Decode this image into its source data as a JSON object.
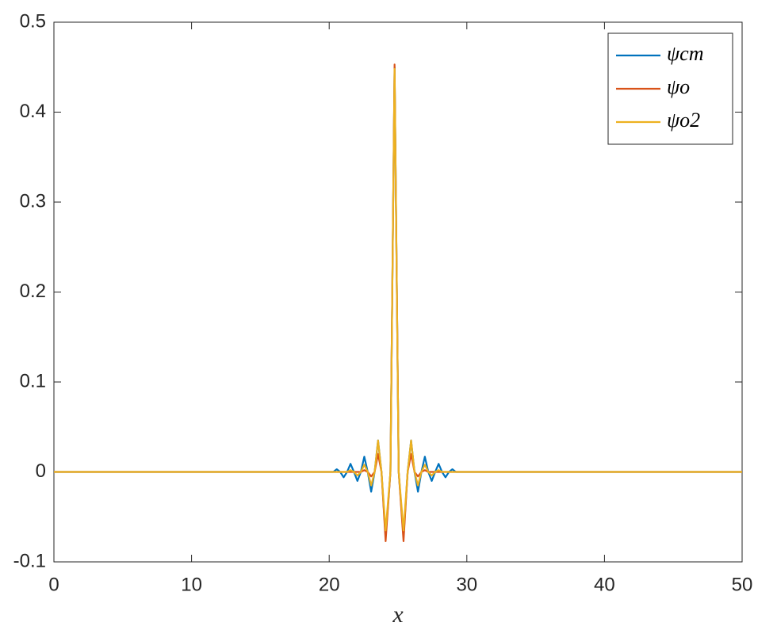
{
  "chart_data": {
    "type": "line",
    "xlabel": "x",
    "x": [
      0,
      20.3,
      20.55,
      20.8,
      21.05,
      21.3,
      21.55,
      21.8,
      22.05,
      22.3,
      22.55,
      22.8,
      23.05,
      23.3,
      23.55,
      23.8,
      24.1,
      24.45,
      24.75,
      25.05,
      25.4,
      25.7,
      25.95,
      26.2,
      26.45,
      26.7,
      26.95,
      27.2,
      27.45,
      27.7,
      27.95,
      28.2,
      28.45,
      28.7,
      28.95,
      29.2,
      50
    ],
    "series": [
      {
        "name": "ψcm",
        "color": "#0072bd",
        "values": [
          0,
          0,
          0.003,
          0,
          -0.006,
          0,
          0.009,
          0,
          -0.01,
          0,
          0.017,
          0,
          -0.022,
          0,
          0.035,
          0,
          -0.072,
          0,
          0.45,
          0,
          -0.072,
          0,
          0.035,
          0,
          -0.022,
          0,
          0.017,
          0,
          -0.01,
          0,
          0.009,
          0,
          -0.006,
          0,
          0.003,
          0,
          0
        ]
      },
      {
        "name": "ψo",
        "color": "#d95319",
        "values": [
          0,
          0,
          0,
          0,
          0,
          0,
          0,
          0,
          0,
          0,
          0.002,
          0,
          -0.005,
          0,
          0.02,
          0,
          -0.077,
          0,
          0.453,
          0,
          -0.077,
          0,
          0.02,
          0,
          -0.005,
          0,
          0.002,
          0,
          0,
          0,
          0,
          0,
          0,
          0,
          0,
          0,
          0
        ]
      },
      {
        "name": "ψo2",
        "color": "#edb120",
        "values": [
          0,
          0,
          0,
          0,
          0,
          0,
          0.002,
          0,
          -0.004,
          0,
          0.008,
          0,
          -0.015,
          0,
          0.035,
          0,
          -0.065,
          0,
          0.448,
          0,
          -0.065,
          0,
          0.035,
          0,
          -0.015,
          0,
          0.008,
          0,
          -0.004,
          0,
          0.002,
          0,
          0,
          0,
          0,
          0,
          0
        ]
      }
    ],
    "xlim": [
      0,
      50
    ],
    "xticks": [
      0,
      10,
      20,
      30,
      40,
      50
    ],
    "ylim": [
      -0.1,
      0.5
    ],
    "yticks": [
      -0.1,
      0,
      0.1,
      0.2,
      0.3,
      0.4,
      0.5
    ],
    "grid": false,
    "legend": "northeast"
  }
}
